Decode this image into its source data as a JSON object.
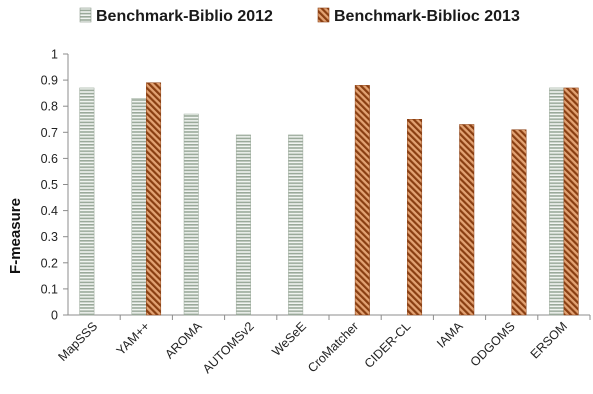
{
  "chart_data": {
    "type": "bar",
    "title": "",
    "xlabel": "",
    "ylabel": "F-measure",
    "ylim": [
      0,
      1
    ],
    "yticks": [
      "0",
      "0.1",
      "0.2",
      "0.3",
      "0.4",
      "0.5",
      "0.6",
      "0.7",
      "0.8",
      "0.9",
      "1"
    ],
    "legend_position": "top",
    "grid": false,
    "categories": [
      "MapSSS",
      "YAM++",
      "AROMA",
      "AUTOMSv2",
      "WeSeE",
      "CroMatcher",
      "CIDER-CL",
      "IAMA",
      "ODGOMS",
      "ERSOM"
    ],
    "series": [
      {
        "name": "Benchmark-Biblio 2012",
        "color": "#9aa99a",
        "pattern": "horizontal-stripes",
        "values": [
          0.87,
          0.83,
          0.77,
          0.69,
          0.69,
          null,
          null,
          null,
          null,
          0.87
        ]
      },
      {
        "name": "Benchmark-Biblioc 2013",
        "color": "#b4561c",
        "pattern": "diagonal-hatch",
        "values": [
          null,
          0.89,
          null,
          null,
          null,
          0.88,
          0.75,
          0.73,
          0.71,
          0.87
        ]
      }
    ]
  }
}
